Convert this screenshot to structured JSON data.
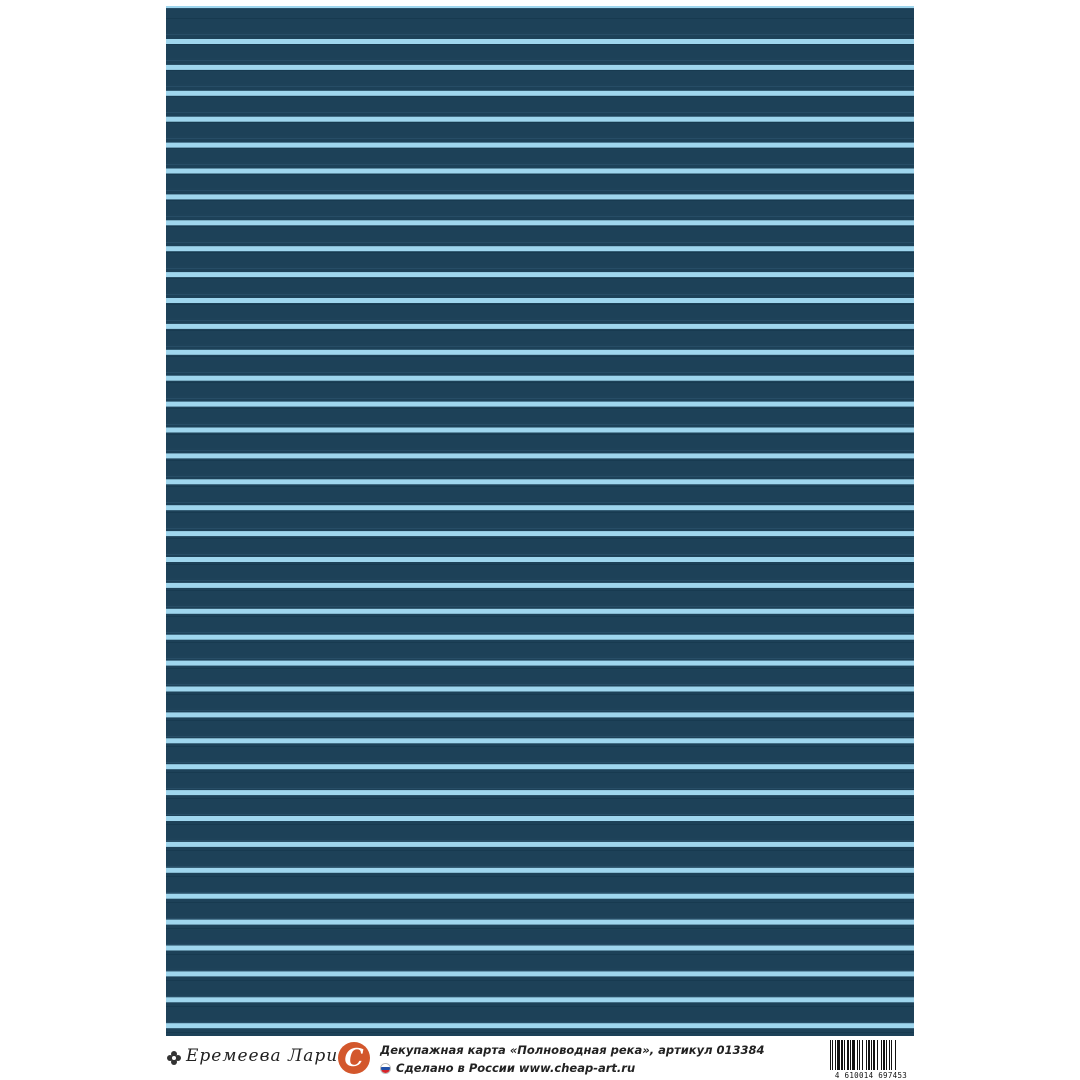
{
  "pattern": {
    "background_color": "#1d4158",
    "stripe_color": "#9fd6ee",
    "stripe_count": 39
  },
  "footer": {
    "author": "Еремеева Лариса",
    "logo_letter": "C",
    "logo_color": "#d3572c",
    "product_line": "Декупажная карта «Полноводная река», артикул 013384",
    "made_line": "Сделано в России www.cheap-art.ru",
    "barcode_number": "4 610014 697453"
  }
}
